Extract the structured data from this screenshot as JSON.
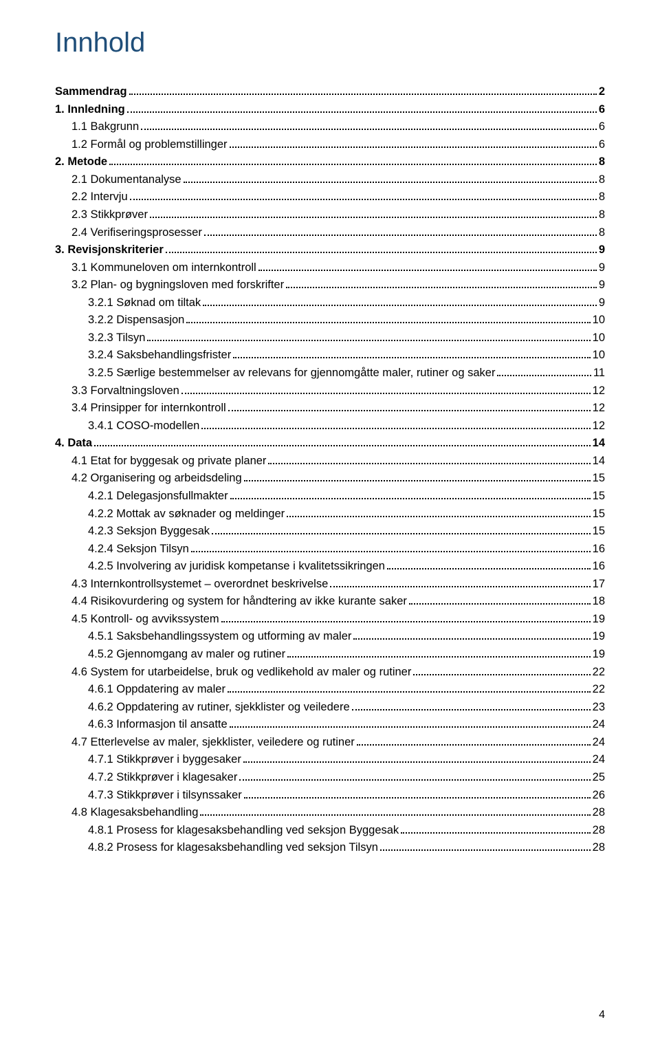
{
  "title": "Innhold",
  "page_number": "4",
  "colors": {
    "title": "#1f4e79",
    "text": "#000000",
    "background": "#ffffff"
  },
  "fontsizes": {
    "title": 40,
    "body": 16.5,
    "page_number": 16
  },
  "toc": [
    {
      "level": 0,
      "label": "Sammendrag",
      "page": "2"
    },
    {
      "level": 0,
      "label": "1. Innledning",
      "page": "6"
    },
    {
      "level": 1,
      "label": "1.1 Bakgrunn",
      "page": "6"
    },
    {
      "level": 1,
      "label": "1.2 Formål og problemstillinger",
      "page": "6"
    },
    {
      "level": 0,
      "label": "2. Metode",
      "page": "8"
    },
    {
      "level": 1,
      "label": "2.1 Dokumentanalyse",
      "page": "8"
    },
    {
      "level": 1,
      "label": "2.2 Intervju",
      "page": "8"
    },
    {
      "level": 1,
      "label": "2.3 Stikkprøver",
      "page": "8"
    },
    {
      "level": 1,
      "label": "2.4 Verifiseringsprosesser",
      "page": "8"
    },
    {
      "level": 0,
      "label": "3. Revisjonskriterier",
      "page": "9"
    },
    {
      "level": 1,
      "label": "3.1 Kommuneloven om internkontroll",
      "page": "9"
    },
    {
      "level": 1,
      "label": "3.2 Plan- og bygningsloven med forskrifter",
      "page": "9"
    },
    {
      "level": 2,
      "label": "3.2.1 Søknad om tiltak",
      "page": "9"
    },
    {
      "level": 2,
      "label": "3.2.2 Dispensasjon",
      "page": "10"
    },
    {
      "level": 2,
      "label": "3.2.3 Tilsyn",
      "page": "10"
    },
    {
      "level": 2,
      "label": "3.2.4 Saksbehandlingsfrister",
      "page": "10"
    },
    {
      "level": 2,
      "label": "3.2.5 Særlige bestemmelser av relevans for gjennomgåtte maler, rutiner og saker",
      "page": "11"
    },
    {
      "level": 1,
      "label": "3.3 Forvaltningsloven",
      "page": "12"
    },
    {
      "level": 1,
      "label": "3.4 Prinsipper for internkontroll",
      "page": "12"
    },
    {
      "level": 2,
      "label": "3.4.1 COSO-modellen",
      "page": "12"
    },
    {
      "level": 0,
      "label": "4. Data",
      "page": "14"
    },
    {
      "level": 1,
      "label": "4.1 Etat for byggesak og private planer",
      "page": "14"
    },
    {
      "level": 1,
      "label": "4.2 Organisering og arbeidsdeling",
      "page": "15"
    },
    {
      "level": 2,
      "label": "4.2.1 Delegasjonsfullmakter",
      "page": "15"
    },
    {
      "level": 2,
      "label": "4.2.2 Mottak av søknader og meldinger",
      "page": "15"
    },
    {
      "level": 2,
      "label": "4.2.3 Seksjon Byggesak",
      "page": "15"
    },
    {
      "level": 2,
      "label": "4.2.4 Seksjon Tilsyn",
      "page": "16"
    },
    {
      "level": 2,
      "label": "4.2.5 Involvering av juridisk kompetanse i kvalitetssikringen",
      "page": "16"
    },
    {
      "level": 1,
      "label": "4.3 Internkontrollsystemet – overordnet beskrivelse",
      "page": "17"
    },
    {
      "level": 1,
      "label": "4.4 Risikovurdering og system for håndtering av ikke kurante saker",
      "page": "18"
    },
    {
      "level": 1,
      "label": "4.5 Kontroll- og avvikssystem",
      "page": "19"
    },
    {
      "level": 2,
      "label": "4.5.1 Saksbehandlingssystem og utforming av maler",
      "page": "19"
    },
    {
      "level": 2,
      "label": "4.5.2 Gjennomgang av maler og rutiner",
      "page": "19"
    },
    {
      "level": 1,
      "label": "4.6 System for utarbeidelse, bruk og vedlikehold av maler og rutiner",
      "page": "22"
    },
    {
      "level": 2,
      "label": "4.6.1 Oppdatering av maler",
      "page": "22"
    },
    {
      "level": 2,
      "label": "4.6.2 Oppdatering av rutiner, sjekklister og veiledere",
      "page": "23"
    },
    {
      "level": 2,
      "label": "4.6.3 Informasjon til ansatte",
      "page": "24"
    },
    {
      "level": 1,
      "label": "4.7 Etterlevelse av maler, sjekklister, veiledere og rutiner",
      "page": "24"
    },
    {
      "level": 2,
      "label": "4.7.1 Stikkprøver i byggesaker",
      "page": "24"
    },
    {
      "level": 2,
      "label": "4.7.2 Stikkprøver i klagesaker",
      "page": "25"
    },
    {
      "level": 2,
      "label": "4.7.3 Stikkprøver i tilsynssaker",
      "page": "26"
    },
    {
      "level": 1,
      "label": "4.8 Klagesaksbehandling",
      "page": "28"
    },
    {
      "level": 2,
      "label": "4.8.1 Prosess for klagesaksbehandling ved seksjon Byggesak",
      "page": "28"
    },
    {
      "level": 2,
      "label": "4.8.2 Prosess for klagesaksbehandling ved seksjon Tilsyn",
      "page": "28"
    }
  ]
}
